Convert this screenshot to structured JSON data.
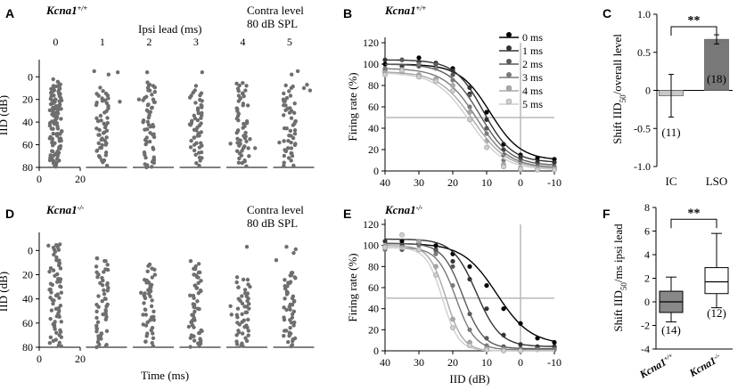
{
  "chart_data": [
    {
      "panel": "A",
      "type": "scatter",
      "title": "Kcna1+/+",
      "genotype": {
        "base": "Kcna1",
        "sup": "+/+"
      },
      "header": "Ipsi lead (ms)",
      "contra_label": [
        "Contra level",
        "80 dB SPL"
      ],
      "ylabel": "IID (dB)",
      "xlabel": "",
      "ylim": [
        -12,
        80
      ],
      "xlim": [
        0,
        20
      ],
      "yticks": [
        "0",
        "20",
        "40",
        "60",
        "80"
      ],
      "xticks": [
        "0",
        "20"
      ],
      "columns": [
        {
          "label": "0",
          "rows": [
            [
              2,
              80
            ],
            [
              8,
              80
            ]
          ],
          "extras": []
        },
        {
          "label": "1",
          "rows": [
            [
              10,
              80
            ]
          ],
          "extras": [
            [
              -8,
              -5
            ],
            [
              6,
              -2
            ],
            [
              15,
              -4
            ],
            [
              17,
              22
            ]
          ]
        },
        {
          "label": "2",
          "rows": [
            [
              5,
              80
            ]
          ],
          "extras": [
            [
              -10,
              20
            ],
            [
              -2,
              -4
            ],
            [
              4,
              8
            ]
          ]
        },
        {
          "label": "3",
          "rows": [
            [
              12,
              80
            ]
          ],
          "extras": [
            [
              -6,
              42
            ],
            [
              0,
              8
            ],
            [
              6,
              -4
            ],
            [
              5,
              25
            ]
          ]
        },
        {
          "label": "4",
          "rows": [
            [
              6,
              80
            ]
          ],
          "extras": [
            [
              -12,
              59
            ],
            [
              6,
              70
            ],
            [
              12,
              63
            ],
            [
              7,
              55
            ]
          ]
        },
        {
          "label": "5",
          "rows": [
            [
              8,
              80
            ]
          ],
          "extras": [
            [
              -10,
              58
            ],
            [
              -6,
              20
            ],
            [
              2,
              -2
            ],
            [
              8,
              -5
            ],
            [
              14,
              10
            ],
            [
              17,
              7
            ],
            [
              20,
              12
            ]
          ]
        }
      ]
    },
    {
      "panel": "B",
      "type": "line",
      "title": "Kcna1+/+",
      "genotype": {
        "base": "Kcna1",
        "sup": "+/+"
      },
      "xlabel": "",
      "ylabel": "Firing rate (%)",
      "xlim": [
        40,
        -10
      ],
      "ylim": [
        0,
        120
      ],
      "xticks": [
        "40",
        "30",
        "20",
        "10",
        "0",
        "-10"
      ],
      "yticks": [
        "0",
        "20",
        "40",
        "60",
        "80",
        "100",
        "120"
      ],
      "reference": {
        "y": 50,
        "x": 0
      },
      "series": [
        {
          "name": "0 ms",
          "color": "#000000",
          "top": 100,
          "bottom": 10,
          "mid": 9,
          "slope": 4.5,
          "points": [
            [
              40,
              100
            ],
            [
              35,
              104
            ],
            [
              30,
              106
            ],
            [
              25,
              101
            ],
            [
              20,
              96
            ],
            [
              15,
              72
            ],
            [
              10,
              55
            ],
            [
              5,
              25
            ],
            [
              0,
              15
            ],
            [
              -5,
              12
            ],
            [
              -10,
              11
            ]
          ]
        },
        {
          "name": "1 ms",
          "color": "#333333",
          "top": 104,
          "bottom": 8,
          "mid": 11,
          "slope": 4.2,
          "points": [
            [
              40,
              104
            ],
            [
              35,
              98
            ],
            [
              30,
              102
            ],
            [
              25,
              100
            ],
            [
              20,
              94
            ],
            [
              15,
              78
            ],
            [
              10,
              48
            ],
            [
              5,
              20
            ],
            [
              0,
              12
            ],
            [
              -5,
              8
            ],
            [
              -10,
              8
            ]
          ]
        },
        {
          "name": "2 ms",
          "color": "#5a5a5a",
          "top": 100,
          "bottom": 5,
          "mid": 12,
          "slope": 4.5,
          "points": [
            [
              40,
              94
            ],
            [
              35,
              104
            ],
            [
              30,
              98
            ],
            [
              25,
              100
            ],
            [
              20,
              90
            ],
            [
              15,
              71
            ],
            [
              10,
              40
            ],
            [
              5,
              15
            ],
            [
              0,
              8
            ],
            [
              -5,
              5
            ],
            [
              -10,
              4
            ]
          ]
        },
        {
          "name": "3 ms",
          "color": "#7a7a7a",
          "top": 96,
          "bottom": 3,
          "mid": 13,
          "slope": 4.8,
          "points": [
            [
              40,
              96
            ],
            [
              35,
              92
            ],
            [
              30,
              100
            ],
            [
              25,
              96
            ],
            [
              20,
              85
            ],
            [
              15,
              60
            ],
            [
              10,
              35
            ],
            [
              5,
              10
            ],
            [
              0,
              3
            ],
            [
              -5,
              2
            ],
            [
              -10,
              3
            ]
          ]
        },
        {
          "name": "4 ms",
          "color": "#a8a8a8",
          "top": 93,
          "bottom": 2,
          "mid": 14,
          "slope": 5,
          "points": [
            [
              40,
              92
            ],
            [
              35,
              95
            ],
            [
              30,
              90
            ],
            [
              25,
              86
            ],
            [
              20,
              80
            ],
            [
              15,
              55
            ],
            [
              10,
              28
            ],
            [
              5,
              6
            ],
            [
              0,
              1
            ],
            [
              -5,
              2
            ],
            [
              -10,
              2
            ]
          ]
        },
        {
          "name": "5 ms",
          "color": "#cfcfcf",
          "top": 92,
          "bottom": 1,
          "mid": 15,
          "slope": 5,
          "points": [
            [
              40,
              90
            ],
            [
              35,
              94
            ],
            [
              30,
              88
            ],
            [
              25,
              84
            ],
            [
              20,
              75
            ],
            [
              15,
              48
            ],
            [
              10,
              22
            ],
            [
              5,
              4
            ],
            [
              0,
              2
            ],
            [
              -5,
              1
            ],
            [
              -10,
              1
            ]
          ]
        }
      ]
    },
    {
      "panel": "C",
      "type": "bar",
      "title": "",
      "ylabel": "Shift IID50/overall level",
      "ylabel_parts": {
        "pre": "Shift IID",
        "sub": "50",
        "post": "/overall level"
      },
      "ylim": [
        -1.0,
        1.0
      ],
      "yticks": [
        "-1.0",
        "-0.5",
        "0",
        "0.5",
        "1.0"
      ],
      "categories": [
        "IC",
        "LSO"
      ],
      "values": [
        -0.07,
        0.67
      ],
      "errors": [
        0.28,
        0.06
      ],
      "n_labels": [
        "(11)",
        "(18)"
      ],
      "colors": [
        "#c8c8c8",
        "#787878"
      ],
      "significance": "**"
    },
    {
      "panel": "D",
      "type": "scatter",
      "title": "Kcna1-/-",
      "genotype": {
        "base": "Kcna1",
        "sup": "-/-"
      },
      "contra_label": [
        "Contra level",
        "80 dB SPL"
      ],
      "ylabel": "IID (dB)",
      "xlabel": "Time (ms)",
      "ylim": [
        -12,
        80
      ],
      "xlim": [
        0,
        20
      ],
      "yticks": [
        "0",
        "20",
        "40",
        "60",
        "80"
      ],
      "xticks": [
        "0",
        "20"
      ],
      "columns": [
        {
          "label": "0",
          "rows": [
            [
              -5,
              80
            ]
          ],
          "extras": [
            [
              -7,
              -4
            ]
          ]
        },
        {
          "label": "1",
          "rows": [
            [
              7,
              80
            ]
          ],
          "extras": []
        },
        {
          "label": "2",
          "rows": [
            [
              11,
              80
            ]
          ],
          "extras": [
            [
              -8,
              35
            ],
            [
              -3,
              62
            ],
            [
              1,
              38
            ]
          ]
        },
        {
          "label": "3",
          "rows": [
            [
              9,
              80
            ]
          ],
          "extras": [
            [
              -7,
              63
            ]
          ]
        },
        {
          "label": "4",
          "rows": [
            [
              22,
              80
            ]
          ],
          "extras": [
            [
              -12,
              46
            ],
            [
              -11,
              53
            ],
            [
              -4,
              40
            ],
            [
              4,
              -3
            ],
            [
              7,
              30
            ],
            [
              6,
              48
            ]
          ]
        },
        {
          "label": "5",
          "rows": [
            [
              18,
              80
            ]
          ],
          "extras": [
            [
              -13,
              8
            ],
            [
              -3,
              -3
            ],
            [
              1,
              26
            ],
            [
              4,
              2
            ],
            [
              6,
              -1
            ]
          ]
        }
      ]
    },
    {
      "panel": "E",
      "type": "line",
      "title": "Kcna1-/-",
      "genotype": {
        "base": "Kcna1",
        "sup": "-/-"
      },
      "xlabel": "IID (dB)",
      "ylabel": "Firing rate (%)",
      "xlim": [
        40,
        -10
      ],
      "ylim": [
        0,
        120
      ],
      "xticks": [
        "40",
        "30",
        "20",
        "10",
        "0",
        "-10"
      ],
      "yticks": [
        "0",
        "20",
        "40",
        "60",
        "80",
        "100",
        "120"
      ],
      "reference": {
        "y": 50,
        "x": 0
      },
      "series": [
        {
          "name": "0 ms",
          "color": "#000000",
          "top": 102,
          "bottom": 6,
          "mid": 7,
          "slope": 5,
          "points": [
            [
              40,
              100
            ],
            [
              35,
              104
            ],
            [
              30,
              102
            ],
            [
              25,
              100
            ],
            [
              20,
              92
            ],
            [
              15,
              80
            ],
            [
              10,
              62
            ],
            [
              5,
              40
            ],
            [
              0,
              26
            ],
            [
              -5,
              12
            ],
            [
              -10,
              8
            ]
          ]
        },
        {
          "name": "1 ms",
          "color": "#333333",
          "top": 106,
          "bottom": 4,
          "mid": 13,
          "slope": 3.5,
          "points": [
            [
              40,
              104
            ],
            [
              35,
              100
            ],
            [
              30,
              102
            ],
            [
              25,
              96
            ],
            [
              20,
              85
            ],
            [
              15,
              68
            ],
            [
              10,
              40
            ],
            [
              5,
              15
            ],
            [
              0,
              6
            ],
            [
              -5,
              4
            ],
            [
              -10,
              4
            ]
          ]
        },
        {
          "name": "2 ms",
          "color": "#5a5a5a",
          "top": 102,
          "bottom": 2,
          "mid": 17,
          "slope": 3,
          "points": [
            [
              40,
              100
            ],
            [
              35,
              96
            ],
            [
              30,
              104
            ],
            [
              25,
              95
            ],
            [
              20,
              80
            ],
            [
              15,
              35
            ],
            [
              10,
              12
            ],
            [
              5,
              4
            ],
            [
              0,
              2
            ],
            [
              -5,
              2
            ],
            [
              -10,
              2
            ]
          ]
        },
        {
          "name": "3 ms",
          "color": "#7a7a7a",
          "top": 98,
          "bottom": 1,
          "mid": 19,
          "slope": 2.8,
          "points": [
            [
              40,
              96
            ],
            [
              35,
              98
            ],
            [
              30,
              100
            ],
            [
              25,
              92
            ],
            [
              20,
              62
            ],
            [
              15,
              20
            ],
            [
              10,
              5
            ],
            [
              5,
              2
            ],
            [
              0,
              1
            ],
            [
              -5,
              1
            ],
            [
              -10,
              1
            ]
          ]
        },
        {
          "name": "4 ms",
          "color": "#a8a8a8",
          "top": 100,
          "bottom": 0,
          "mid": 22,
          "slope": 2.5,
          "points": [
            [
              40,
              100
            ],
            [
              35,
              98
            ],
            [
              30,
              104
            ],
            [
              25,
              80
            ],
            [
              20,
              30
            ],
            [
              15,
              8
            ],
            [
              10,
              2
            ],
            [
              5,
              1
            ],
            [
              0,
              0
            ]
          ]
        },
        {
          "name": "5 ms",
          "color": "#cfcfcf",
          "top": 98,
          "bottom": 0,
          "mid": 23,
          "slope": 2.4,
          "points": [
            [
              40,
              98
            ],
            [
              35,
              110
            ],
            [
              30,
              96
            ],
            [
              25,
              72
            ],
            [
              20,
              22
            ],
            [
              15,
              5
            ],
            [
              10,
              1
            ],
            [
              5,
              0
            ],
            [
              0,
              0
            ]
          ]
        }
      ]
    },
    {
      "panel": "F",
      "type": "box",
      "title": "",
      "ylabel": "Shift IID50/ms ipsi lead",
      "ylabel_parts": {
        "pre": "Shift IID",
        "sub": "50",
        "post": "/ms ipsi lead"
      },
      "ylim": [
        -4,
        8
      ],
      "yticks": [
        "-4",
        "-2",
        "0",
        "2",
        "4",
        "6",
        "8"
      ],
      "categories": [
        {
          "base": "Kcna1",
          "sup": "+/+"
        },
        {
          "base": "Kcna1",
          "sup": "-/-"
        }
      ],
      "boxes": [
        {
          "min": -1.7,
          "q1": -0.9,
          "median": 0.0,
          "q3": 0.9,
          "max": 2.1,
          "color": "#888888"
        },
        {
          "min": -0.5,
          "q1": 0.7,
          "median": 1.7,
          "q3": 2.9,
          "max": 5.8,
          "color": "#ffffff"
        }
      ],
      "n_labels": [
        "(14)",
        "(12)"
      ],
      "significance": "**"
    }
  ]
}
